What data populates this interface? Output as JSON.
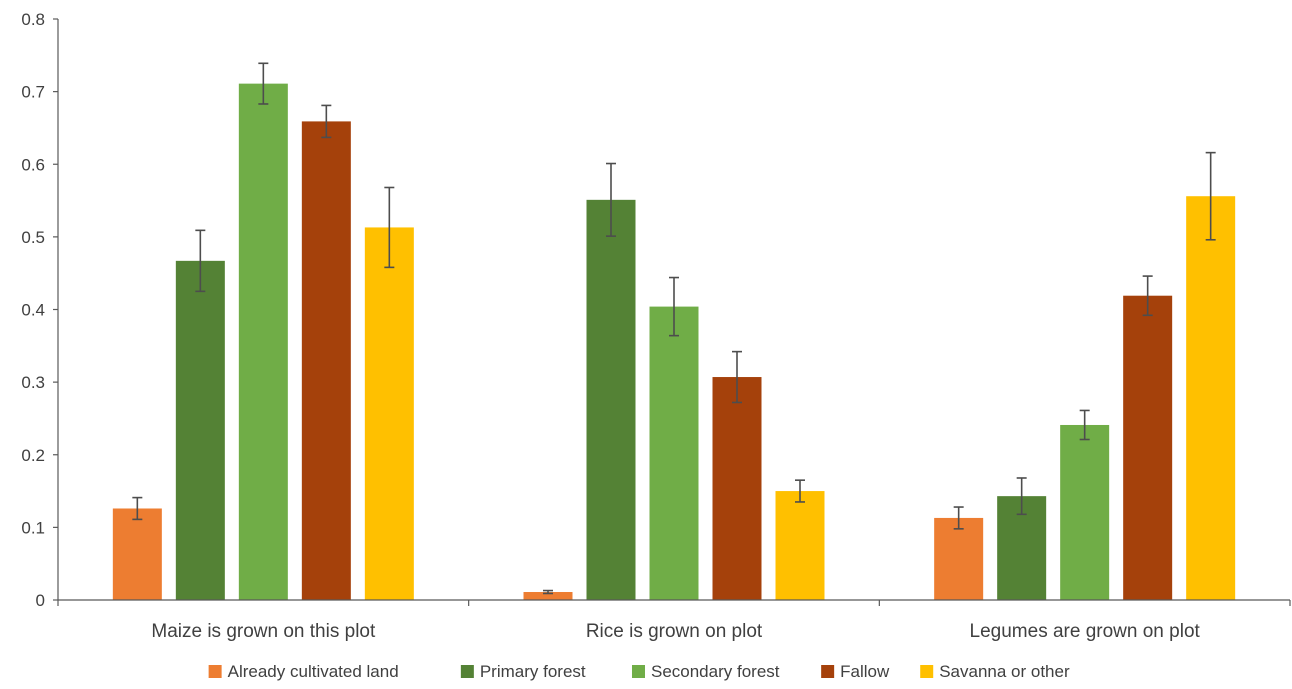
{
  "chart_data": {
    "type": "bar",
    "title": "",
    "xlabel": "",
    "ylabel": "",
    "ylim": [
      0,
      0.8
    ],
    "yticks": [
      "0",
      "0.1",
      "0.2",
      "0.3",
      "0.4",
      "0.5",
      "0.6",
      "0.7",
      "0.8"
    ],
    "grid": false,
    "legend_position": "bottom",
    "categories": [
      "Maize is grown on this plot",
      "Rice is grown on plot",
      "Legumes are grown on plot"
    ],
    "series": [
      {
        "name": "Already cultivated land",
        "color": "#ED7D31",
        "values": [
          0.126,
          0.011,
          0.113
        ],
        "error": [
          0.015,
          0.002,
          0.015
        ]
      },
      {
        "name": "Primary forest",
        "color": "#548235",
        "values": [
          0.467,
          0.551,
          0.143
        ],
        "error": [
          0.042,
          0.05,
          0.025
        ]
      },
      {
        "name": "Secondary forest",
        "color": "#70AD47",
        "values": [
          0.711,
          0.404,
          0.241
        ],
        "error": [
          0.028,
          0.04,
          0.02
        ]
      },
      {
        "name": "Fallow",
        "color": "#A5410B",
        "values": [
          0.659,
          0.307,
          0.419
        ],
        "error": [
          0.022,
          0.035,
          0.027
        ]
      },
      {
        "name": "Savanna or other",
        "color": "#FFC000",
        "values": [
          0.513,
          0.15,
          0.556
        ],
        "error": [
          0.055,
          0.015,
          0.06
        ]
      }
    ]
  }
}
